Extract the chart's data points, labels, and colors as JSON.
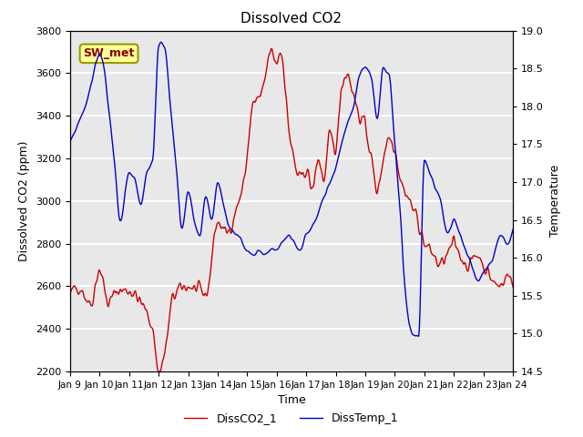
{
  "title": "Dissolved CO2",
  "xlabel": "Time",
  "ylabel_left": "Dissolved CO2 (ppm)",
  "ylabel_right": "Temperature",
  "legend_labels": [
    "DissCO2_1",
    "DissTemp_1"
  ],
  "legend_colors": [
    "#cc0000",
    "#0000cc"
  ],
  "ylim_left": [
    2200,
    3800
  ],
  "ylim_right": [
    14.5,
    19.0
  ],
  "yticks_left": [
    2200,
    2400,
    2600,
    2800,
    3000,
    3200,
    3400,
    3600,
    3800
  ],
  "yticks_right": [
    14.5,
    15.0,
    15.5,
    16.0,
    16.5,
    17.0,
    17.5,
    18.0,
    18.5,
    19.0
  ],
  "xtick_labels": [
    "Jan 9",
    "Jan 10",
    "Jan 11",
    "Jan 12",
    "Jan 13",
    "Jan 14",
    "Jan 15",
    "Jan 16",
    "Jan 17",
    "Jan 18",
    "Jan 19",
    "Jan 20",
    "Jan 21",
    "Jan 22",
    "Jan 23",
    "Jan 24"
  ],
  "background_color": "#e8e8e8",
  "grid_color": "#ffffff",
  "annotation_text": "SW_met",
  "annotation_bg": "#ffff99",
  "annotation_border": "#999900"
}
